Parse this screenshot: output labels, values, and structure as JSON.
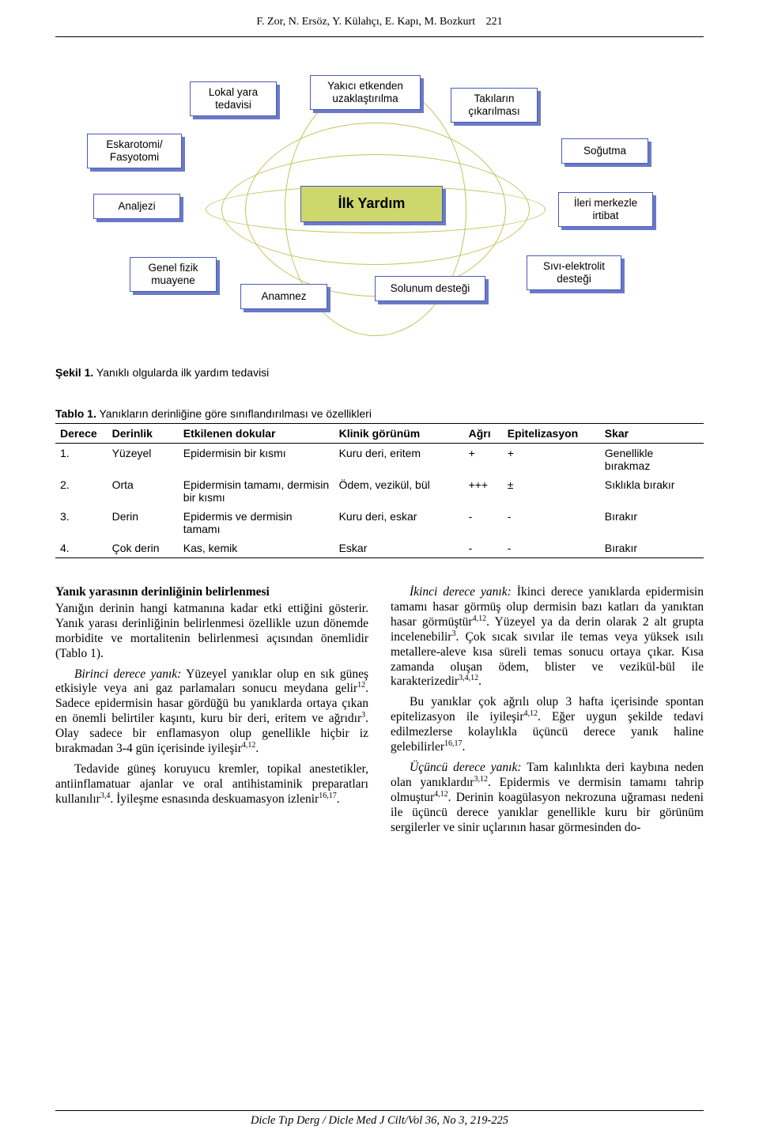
{
  "header": {
    "authors": "F. Zor, N. Ersöz, Y. Külahçı, E. Kapı, M. Bozkurt",
    "page_number": "221"
  },
  "diagram": {
    "center": "İlk Yardım",
    "nodes": {
      "lokal_yara": "Lokal yara\ntedavisi",
      "yakici": "Yakıcı etkenden\nuzaklaştırılma",
      "takilarin": "Takıların\nçıkarılması",
      "eskarotomi": "Eskarotomi/\nFasyotomi",
      "sogutma": "Soğutma",
      "analjezi": "Analjezi",
      "ileri": "İleri merkezle\nirtibat",
      "genel_fizik": "Genel fizik\nmuayene",
      "anamnez": "Anamnez",
      "solunum": "Solunum desteği",
      "sivi": "Sıvı-elektrolit\ndesteği"
    },
    "colors": {
      "box_border": "#4b5bb5",
      "box_shadow": "#6a7ac7",
      "box_bg": "#ffffff",
      "center_bg": "#cdd76b",
      "ellipse_border": "#bfc65b"
    }
  },
  "figure_caption": {
    "label": "Şekil 1.",
    "text": " Yanıklı olgularda ilk yardım tedavisi"
  },
  "table_caption": {
    "label": "Tablo 1.",
    "text": " Yanıkların derinliğine göre sınıflandırılması ve özellikleri"
  },
  "table": {
    "columns": [
      "Derece",
      "Derinlik",
      "Etkilenen dokular",
      "Klinik görünüm",
      "Ağrı",
      "Epitelizasyon",
      "Skar"
    ],
    "widths": [
      "8%",
      "11%",
      "24%",
      "20%",
      "6%",
      "15%",
      "16%"
    ],
    "rows": [
      [
        "1.",
        "Yüzeyel",
        "Epidermisin bir kısmı",
        "Kuru deri, eritem",
        "+",
        "+",
        "Genellikle bırakmaz"
      ],
      [
        "2.",
        "Orta",
        "Epidermisin tamamı, dermisin bir kısmı",
        "Ödem, vezikül, bül",
        "+++",
        "±",
        "Sıklıkla bırakır"
      ],
      [
        "3.",
        "Derin",
        "Epidermis ve dermisin tamamı",
        "Kuru deri, eskar",
        "-",
        "-",
        "Bırakır"
      ],
      [
        "4.",
        "Çok derin",
        "Kas, kemik",
        "Eskar",
        "-",
        "-",
        "Bırakır"
      ]
    ]
  },
  "body": {
    "left": {
      "h": "Yanık yarasının derinliğinin belirlenmesi",
      "p1": "Yanığın derinin hangi katmanına kadar etki ettiğini gösterir. Yanık yarası derinliğinin belirlenmesi özellikle uzun dönemde morbidite ve mortalitenin belirlenmesi açısından önemlidir (Tablo 1).",
      "p2a": "Birinci derece yanık:",
      "p2b": " Yüzeyel yanıklar olup en sık güneş etkisiyle veya ani gaz parlamaları sonucu meydana gelir",
      "p2s1": "12",
      "p2c": ". Sadece epidermisin hasar gördüğü bu yanıklarda ortaya çıkan en önemli belirtiler kaşıntı, kuru bir deri, eritem ve ağrıdır",
      "p2s2": "3",
      "p2d": ". Olay sadece bir enflamasyon olup genellikle hiçbir iz bırakmadan 3-4 gün içerisinde iyileşir",
      "p2s3": "4,12",
      "p2e": ".",
      "p3a": "Tedavide güneş koruyucu kremler, topikal anestetikler, antiinflamatuar ajanlar ve oral antihistaminik preparatları kullanılır",
      "p3s1": "3,4",
      "p3b": ". İyileşme esnasında deskuamasyon izlenir",
      "p3s2": "16,17",
      "p3c": "."
    },
    "right": {
      "p1a": "İkinci derece yanık:",
      "p1b": " İkinci derece yanıklarda epidermisin tamamı hasar görmüş olup dermisin bazı katları da yanıktan hasar görmüştür",
      "p1s1": "4,12",
      "p1c": ". Yüzeyel ya da derin olarak 2 alt grupta incelenebilir",
      "p1s2": "3",
      "p1d": ". Çok sıcak sıvılar ile temas veya yüksek ısılı metallere-aleve kısa süreli temas sonucu ortaya çıkar. Kısa zamanda oluşan ödem, blister ve vezikül-bül ile karakterizedir",
      "p1s3": "3,4,12",
      "p1e": ".",
      "p2a": "Bu yanıklar çok ağrılı olup 3 hafta içerisinde spontan epitelizasyon ile iyileşir",
      "p2s1": "4,12",
      "p2b": ". Eğer uygun şekilde tedavi edilmezlerse kolaylıkla üçüncü derece yanık haline gelebilirler",
      "p2s2": "16,17",
      "p2c": ".",
      "p3a": "Üçüncü derece yanık:",
      "p3b": " Tam kalınlıkta deri kaybına neden olan yanıklardır",
      "p3s1": "3,12",
      "p3c": ". Epidermis ve dermisin tamamı tahrip olmuştur",
      "p3s2": "4,12",
      "p3d": ". Derinin koagülasyon nekrozuna uğraması nedeni ile üçüncü derece yanıklar genellikle kuru bir görünüm sergilerler ve sinir uçlarının hasar görmesinden do-"
    }
  },
  "footer": "Dicle Tıp Derg / Dicle Med J Cilt/Vol 36, No 3, 219-225"
}
